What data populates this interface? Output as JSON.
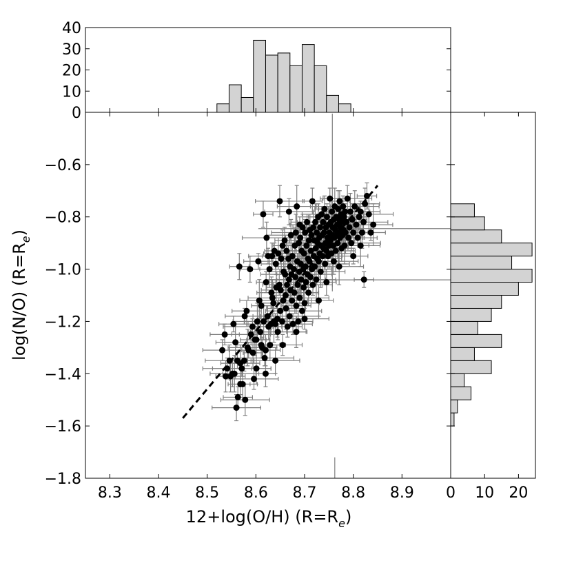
{
  "chart_data": [
    {
      "panel": "scatter",
      "type": "scatter",
      "xlabel": "12+log(O/H) (R=R",
      "xlabel_sub": "e",
      "xlabel_end": ")",
      "ylabel": "log(N/O) (R=R",
      "ylabel_sub": "e",
      "ylabel_end": ")",
      "xlim": [
        8.25,
        9.0
      ],
      "ylim": [
        -1.8,
        -0.4
      ],
      "xticks": [
        8.3,
        8.4,
        8.5,
        8.6,
        8.7,
        8.8,
        8.9
      ],
      "xtick_labels": [
        "8.3",
        "8.4",
        "8.5",
        "8.6",
        "8.7",
        "8.8",
        "8.9"
      ],
      "yticks": [
        -1.8,
        -1.6,
        -1.4,
        -1.2,
        -1.0,
        -0.8,
        -0.6
      ],
      "ytick_labels": [
        "−1.8",
        "−1.6",
        "−1.4",
        "−1.2",
        "−1.0",
        "−0.8",
        "−0.6"
      ],
      "points": [
        [
          8.531,
          -1.31
        ],
        [
          8.538,
          -1.41
        ],
        [
          8.541,
          -1.38
        ],
        [
          8.548,
          -1.41
        ],
        [
          8.552,
          -1.4
        ],
        [
          8.556,
          -1.4
        ],
        [
          8.554,
          -1.21
        ],
        [
          8.558,
          -1.28
        ],
        [
          8.562,
          -1.35
        ],
        [
          8.56,
          -1.53
        ],
        [
          8.563,
          -1.49
        ],
        [
          8.566,
          -0.99
        ],
        [
          8.568,
          -1.36
        ],
        [
          8.571,
          -1.38
        ],
        [
          8.573,
          -1.44
        ],
        [
          8.576,
          -1.35
        ],
        [
          8.578,
          -1.5
        ],
        [
          8.581,
          -1.16
        ],
        [
          8.585,
          -1.31
        ],
        [
          8.588,
          -1.0
        ],
        [
          8.59,
          -1.25
        ],
        [
          8.594,
          -1.32
        ],
        [
          8.596,
          -1.42
        ],
        [
          8.598,
          -1.27
        ],
        [
          8.601,
          -1.27
        ],
        [
          8.603,
          -1.2
        ],
        [
          8.605,
          -0.97
        ],
        [
          8.607,
          -1.12
        ],
        [
          8.609,
          -1.24
        ],
        [
          8.611,
          -1.29
        ],
        [
          8.613,
          -1.3
        ],
        [
          8.615,
          -0.79
        ],
        [
          8.616,
          -1.2
        ],
        [
          8.618,
          -1.34
        ],
        [
          8.62,
          -1.31
        ],
        [
          8.621,
          -1.05
        ],
        [
          8.622,
          -0.88
        ],
        [
          8.624,
          -1.18
        ],
        [
          8.625,
          -0.95
        ],
        [
          8.626,
          -1.22
        ],
        [
          8.628,
          -1.0
        ],
        [
          8.629,
          -1.29
        ],
        [
          8.631,
          -1.21
        ],
        [
          8.632,
          -1.09
        ],
        [
          8.633,
          -0.95
        ],
        [
          8.634,
          -1.11
        ],
        [
          8.636,
          -1.13
        ],
        [
          8.637,
          -1.2
        ],
        [
          8.638,
          -0.93
        ],
        [
          8.64,
          -1.35
        ],
        [
          8.641,
          -0.98
        ],
        [
          8.642,
          -1.07
        ],
        [
          8.644,
          -1.19
        ],
        [
          8.645,
          -1.24
        ],
        [
          8.646,
          -0.94
        ],
        [
          8.648,
          -1.06
        ],
        [
          8.649,
          -0.74
        ],
        [
          8.65,
          -1.16
        ],
        [
          8.651,
          -1.08
        ],
        [
          8.652,
          -0.96
        ],
        [
          8.654,
          -1.2
        ],
        [
          8.655,
          -0.91
        ],
        [
          8.656,
          -1.12
        ],
        [
          8.657,
          -1.01
        ],
        [
          8.659,
          -0.89
        ],
        [
          8.66,
          -1.02
        ],
        [
          8.661,
          -1.1
        ],
        [
          8.662,
          -1.15
        ],
        [
          8.663,
          -0.93
        ],
        [
          8.664,
          -1.06
        ],
        [
          8.665,
          -1.22
        ],
        [
          8.667,
          -0.96
        ],
        [
          8.668,
          -1.04
        ],
        [
          8.669,
          -1.18
        ],
        [
          8.67,
          -0.99
        ],
        [
          8.671,
          -1.08
        ],
        [
          8.672,
          -0.87
        ],
        [
          8.673,
          -1.02
        ],
        [
          8.674,
          -1.12
        ],
        [
          8.675,
          -0.95
        ],
        [
          8.676,
          -1.21
        ],
        [
          8.678,
          -1.0
        ],
        [
          8.679,
          -1.09
        ],
        [
          8.68,
          -0.91
        ],
        [
          8.681,
          -1.03
        ],
        [
          8.682,
          -0.86
        ],
        [
          8.683,
          -1.14
        ],
        [
          8.684,
          -0.76
        ],
        [
          8.685,
          -0.97
        ],
        [
          8.686,
          -1.06
        ],
        [
          8.687,
          -1.2
        ],
        [
          8.688,
          -0.9
        ],
        [
          8.689,
          -1.01
        ],
        [
          8.69,
          -1.11
        ],
        [
          8.691,
          -0.88
        ],
        [
          8.692,
          -0.98
        ],
        [
          8.693,
          -1.04
        ],
        [
          8.694,
          -0.93
        ],
        [
          8.695,
          -1.16
        ],
        [
          8.696,
          -0.84
        ],
        [
          8.697,
          -1.0
        ],
        [
          8.698,
          -1.07
        ],
        [
          8.699,
          -0.94
        ],
        [
          8.7,
          -1.13
        ],
        [
          8.701,
          -0.86
        ],
        [
          8.702,
          -0.99
        ],
        [
          8.703,
          -1.05
        ],
        [
          8.704,
          -0.91
        ],
        [
          8.705,
          -0.82
        ],
        [
          8.706,
          -1.02
        ],
        [
          8.707,
          -0.96
        ],
        [
          8.708,
          -1.09
        ],
        [
          8.709,
          -0.89
        ],
        [
          8.71,
          -0.97
        ],
        [
          8.711,
          -0.85
        ],
        [
          8.712,
          -1.03
        ],
        [
          8.713,
          -0.93
        ],
        [
          8.714,
          -0.87
        ],
        [
          8.715,
          -1.0
        ],
        [
          8.716,
          -0.74
        ],
        [
          8.717,
          -1.06
        ],
        [
          8.718,
          -0.84
        ],
        [
          8.719,
          -0.95
        ],
        [
          8.72,
          -0.89
        ],
        [
          8.721,
          -0.99
        ],
        [
          8.722,
          -0.82
        ],
        [
          8.723,
          -0.92
        ],
        [
          8.724,
          -1.04
        ],
        [
          8.725,
          -0.86
        ],
        [
          8.726,
          -0.96
        ],
        [
          8.727,
          -0.9
        ],
        [
          8.728,
          -0.8
        ],
        [
          8.729,
          -0.97
        ],
        [
          8.73,
          -0.88
        ],
        [
          8.731,
          -0.94
        ],
        [
          8.732,
          -0.84
        ],
        [
          8.733,
          -1.01
        ],
        [
          8.734,
          -0.91
        ],
        [
          8.735,
          -0.79
        ],
        [
          8.736,
          -0.87
        ],
        [
          8.737,
          -0.95
        ],
        [
          8.738,
          -0.82
        ],
        [
          8.739,
          -0.92
        ],
        [
          8.74,
          -0.86
        ],
        [
          8.741,
          -0.77
        ],
        [
          8.742,
          -0.98
        ],
        [
          8.743,
          -0.9
        ],
        [
          8.744,
          -0.84
        ],
        [
          8.745,
          -0.93
        ],
        [
          8.746,
          -0.8
        ],
        [
          8.747,
          -0.88
        ],
        [
          8.748,
          -0.95
        ],
        [
          8.749,
          -0.83
        ],
        [
          8.75,
          -0.91
        ],
        [
          8.751,
          -0.86
        ],
        [
          8.752,
          -0.73
        ],
        [
          8.753,
          -0.89
        ],
        [
          8.754,
          -0.82
        ],
        [
          8.755,
          -0.94
        ],
        [
          8.756,
          -0.78
        ],
        [
          8.757,
          -0.87
        ],
        [
          8.758,
          -0.84
        ],
        [
          8.759,
          -0.91
        ],
        [
          8.76,
          -0.81
        ],
        [
          8.761,
          -0.88
        ],
        [
          8.762,
          -0.76
        ],
        [
          8.763,
          -0.85
        ],
        [
          8.764,
          -0.93
        ],
        [
          8.765,
          -0.8
        ],
        [
          8.766,
          -0.87
        ],
        [
          8.767,
          -0.83
        ],
        [
          8.768,
          -0.9
        ],
        [
          8.769,
          -0.77
        ],
        [
          8.77,
          -0.86
        ],
        [
          8.771,
          -0.81
        ],
        [
          8.772,
          -0.74
        ],
        [
          8.773,
          -0.88
        ],
        [
          8.774,
          -0.84
        ],
        [
          8.775,
          -0.79
        ],
        [
          8.776,
          -0.92
        ],
        [
          8.777,
          -0.82
        ],
        [
          8.778,
          -0.87
        ],
        [
          8.779,
          -0.76
        ],
        [
          8.78,
          -0.85
        ],
        [
          8.781,
          -0.8
        ],
        [
          8.782,
          -0.91
        ],
        [
          8.783,
          -0.78
        ],
        [
          8.784,
          -0.86
        ],
        [
          8.786,
          -0.82
        ],
        [
          8.788,
          -0.73
        ],
        [
          8.79,
          -0.88
        ],
        [
          8.792,
          -0.84
        ],
        [
          8.794,
          -0.78
        ],
        [
          8.796,
          -0.9
        ],
        [
          8.798,
          -0.81
        ],
        [
          8.8,
          -0.86
        ],
        [
          8.803,
          -0.76
        ],
        [
          8.806,
          -0.83
        ],
        [
          8.809,
          -0.88
        ],
        [
          8.812,
          -0.8
        ],
        [
          8.815,
          -0.78
        ],
        [
          8.818,
          -0.86
        ],
        [
          8.821,
          -0.82
        ],
        [
          8.824,
          -0.75
        ],
        [
          8.828,
          -0.72
        ],
        [
          8.832,
          -0.79
        ],
        [
          8.836,
          -0.86
        ],
        [
          8.841,
          -0.83
        ],
        [
          8.822,
          -1.04
        ],
        [
          8.76,
          -0.97
        ],
        [
          8.64,
          -1.21
        ],
        [
          8.611,
          -1.14
        ],
        [
          8.583,
          -1.3
        ],
        [
          8.593,
          -1.22
        ],
        [
          8.601,
          -1.38
        ],
        [
          8.568,
          -1.44
        ],
        [
          8.546,
          -1.35
        ],
        [
          8.536,
          -1.25
        ],
        [
          8.577,
          -1.18
        ],
        [
          8.62,
          -1.4
        ],
        [
          8.655,
          -1.29
        ],
        [
          8.683,
          -1.24
        ],
        [
          8.7,
          -1.19
        ],
        [
          8.729,
          -1.12
        ],
        [
          8.745,
          -1.05
        ],
        [
          8.771,
          -0.99
        ],
        [
          8.8,
          -0.95
        ],
        [
          8.815,
          -0.91
        ],
        [
          8.69,
          -0.83
        ],
        [
          8.668,
          -0.78
        ]
      ],
      "x_errors": [
        0.04,
        0.02,
        0.05,
        0.03,
        0.02,
        0.05,
        0.03,
        0.04,
        0.02,
        0.05,
        0.03,
        0.02,
        0.04,
        0.06,
        0.03,
        0.02,
        0.05,
        0.03,
        0.04,
        0.02
      ],
      "y_errors": [
        0.04,
        0.06,
        0.03,
        0.05,
        0.07,
        0.04,
        0.03,
        0.06,
        0.05,
        0.08,
        0.04,
        0.03,
        0.06,
        0.05,
        0.04,
        0.07,
        0.03,
        0.05,
        0.06,
        0.04
      ],
      "fit_line": {
        "x": [
          8.45,
          8.85
        ],
        "y": [
          -1.57,
          -0.68
        ]
      },
      "outlier_errors": [
        {
          "x": 8.757,
          "y": -0.745,
          "x_err": 0.0,
          "y_err": 0.34
        },
        {
          "x": 8.845,
          "y": -0.845,
          "x_err": 0.24,
          "y_err": 0.0
        },
        {
          "x": 8.822,
          "y": -1.041,
          "x_err": 0.2,
          "y_err": 0.0
        },
        {
          "x": 8.762,
          "y": -1.84,
          "x_err": 0.0,
          "y_err": 0.12
        }
      ]
    },
    {
      "panel": "top-histogram",
      "type": "bar",
      "bin_edges": [
        8.52,
        8.545,
        8.57,
        8.595,
        8.62,
        8.645,
        8.67,
        8.695,
        8.72,
        8.745,
        8.77,
        8.795,
        8.82,
        8.845
      ],
      "values": [
        4,
        13,
        7,
        34,
        27,
        28,
        22,
        32,
        22,
        8,
        4,
        0,
        0
      ],
      "ylim": [
        0,
        40
      ],
      "yticks": [
        0,
        10,
        20,
        30,
        40
      ],
      "ytick_labels": [
        "0",
        "10",
        "20",
        "30",
        "40"
      ]
    },
    {
      "panel": "right-histogram",
      "type": "bar",
      "orientation": "horizontal",
      "bin_edges": [
        -1.6,
        -1.55,
        -1.5,
        -1.45,
        -1.4,
        -1.35,
        -1.3,
        -1.25,
        -1.2,
        -1.15,
        -1.1,
        -1.05,
        -1.0,
        -0.95,
        -0.9,
        -0.85,
        -0.8,
        -0.75,
        -0.7
      ],
      "values": [
        1,
        2,
        6,
        4,
        12,
        7,
        15,
        8,
        12,
        15,
        20,
        24,
        18,
        24,
        15,
        10,
        7,
        0
      ],
      "xlim": [
        0,
        25
      ],
      "xticks": [
        0,
        10,
        20
      ],
      "xtick_labels": [
        "0",
        "10",
        "20"
      ]
    }
  ],
  "colors": {
    "bar_fill": "#d3d3d3",
    "bar_stroke": "#000000",
    "point": "#000000",
    "error_bar": "#7f7f7f",
    "fit_line": "#000000"
  }
}
